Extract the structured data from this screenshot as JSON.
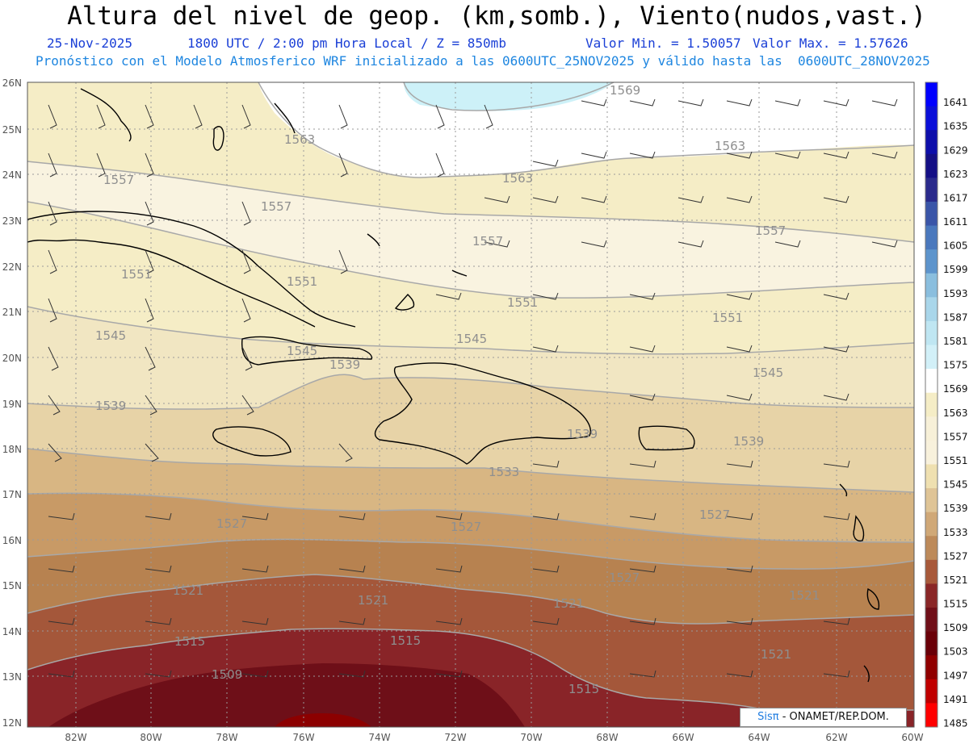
{
  "header": {
    "title": "Altura del nivel de geop. (km,somb.), Viento(nudos,vast.)",
    "date": "25-Nov-2025",
    "time_info": "1800 UTC / 2:00 pm Hora Local / Z = 850mb",
    "min_value": "Valor Min. = 1.50057",
    "max_value": "Valor Max. = 1.57626",
    "forecast_note": "Pronóstico con el Modelo Atmosferico WRF inicializado a las 0600UTC_25NOV2025 y válido hasta las  0600UTC_28NOV2025"
  },
  "map": {
    "lat_labels": [
      "26N",
      "25N",
      "24N",
      "23N",
      "22N",
      "21N",
      "20N",
      "19N",
      "18N",
      "17N",
      "16N",
      "15N",
      "14N",
      "13N",
      "12N"
    ],
    "lon_labels": [
      "82W",
      "80W",
      "78W",
      "76W",
      "74W",
      "72W",
      "70W",
      "68W",
      "66W",
      "64W",
      "62W",
      "60W"
    ],
    "contour_labels": [
      "1569",
      "1563",
      "1563",
      "1563",
      "1557",
      "1557",
      "1557",
      "1557",
      "1551",
      "1551",
      "1551",
      "1551",
      "1545",
      "1545",
      "1545",
      "1545",
      "1539",
      "1539",
      "1539",
      "1539",
      "1533",
      "1527",
      "1527",
      "1527",
      "1527",
      "1521",
      "1521",
      "1521",
      "1521",
      "1521",
      "1515",
      "1515",
      "1515",
      "1509"
    ],
    "colors": {
      "land_outline": "#000000",
      "grid": "#9a9a9a",
      "contour": "#a8a8a8",
      "wind_barb": "#333333"
    }
  },
  "colorbar": {
    "levels": [
      "1641",
      "1635",
      "1629",
      "1623",
      "1617",
      "1611",
      "1605",
      "1599",
      "1593",
      "1587",
      "1581",
      "1575",
      "1569",
      "1563",
      "1557",
      "1551",
      "1545",
      "1539",
      "1533",
      "1527",
      "1521",
      "1515",
      "1509",
      "1503",
      "1497",
      "1491",
      "1485"
    ],
    "colors": [
      "#0000ff",
      "#0a0fd9",
      "#0d0eaa",
      "#140f85",
      "#2a2a8c",
      "#3a55a8",
      "#4a78bd",
      "#5d94cc",
      "#8abede",
      "#a9d6ea",
      "#bfe6f2",
      "#d2f0f8",
      "#ffffff",
      "#f5edc6",
      "#f7f0d8",
      "#f8f1dc",
      "#efe0b0",
      "#dfc496",
      "#d0a877",
      "#bd8a5a",
      "#a8593a",
      "#8a2727",
      "#700f18",
      "#6a0008",
      "#900000",
      "#c00000",
      "#ff0000"
    ]
  },
  "credit": {
    "brand": "Sisπ",
    "org": " - ONAMET/REP.DOM."
  }
}
